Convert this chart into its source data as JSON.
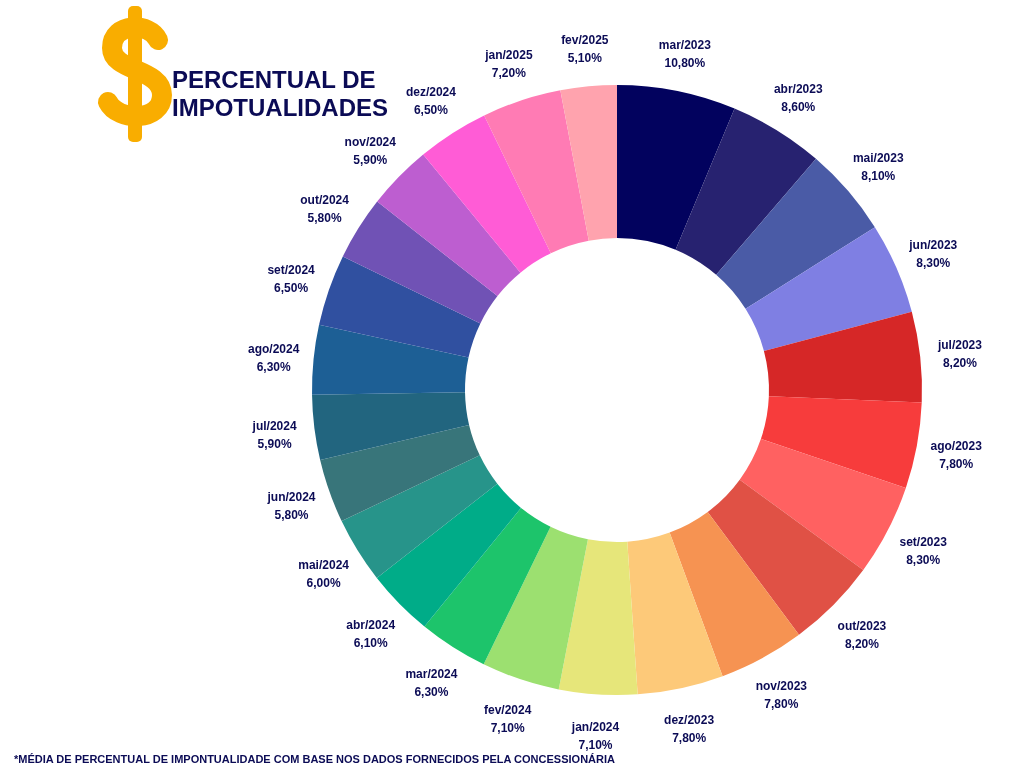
{
  "chart_data": {
    "type": "donut",
    "title": "PERCENTUAL DE IMPOTUALIDADES",
    "categories": [
      "mar/2023",
      "abr/2023",
      "mai/2023",
      "jun/2023",
      "jul/2023",
      "ago/2023",
      "set/2023",
      "out/2023",
      "nov/2023",
      "dez/2023",
      "jan/2024",
      "fev/2024",
      "mar/2024",
      "abr/2024",
      "mai/2024",
      "jun/2024",
      "jul/2024",
      "ago/2024",
      "set/2024",
      "out/2024",
      "nov/2024",
      "dez/2024",
      "jan/2025",
      "fev/2025"
    ],
    "values": [
      10.8,
      8.6,
      8.1,
      8.3,
      8.2,
      7.8,
      8.3,
      8.2,
      7.8,
      7.8,
      7.1,
      7.1,
      6.3,
      6.1,
      6.0,
      5.8,
      5.9,
      6.3,
      6.5,
      5.8,
      5.9,
      6.5,
      7.2,
      5.1
    ],
    "value_labels": [
      "10,80%",
      "8,60%",
      "8,10%",
      "8,30%",
      "8,20%",
      "7,80%",
      "8,30%",
      "8,20%",
      "7,80%",
      "7,80%",
      "7,10%",
      "7,10%",
      "6,30%",
      "6,10%",
      "6,00%",
      "5,80%",
      "5,90%",
      "6,30%",
      "6,50%",
      "5,80%",
      "5,90%",
      "6,50%",
      "7,20%",
      "5,10%"
    ],
    "colors": [
      "#02025e",
      "#272270",
      "#4a5ba6",
      "#7f7fe3",
      "#d62727",
      "#f73c3c",
      "#ff6161",
      "#e05145",
      "#f69352",
      "#fdc979",
      "#e6e67a",
      "#9ce070",
      "#1dc46b",
      "#00ac88",
      "#27948a",
      "#38757a",
      "#22657f",
      "#1d5f95",
      "#3050a0",
      "#7052b5",
      "#bd5ed0",
      "#ff5cd6",
      "#ff7bb4",
      "#ffa3ae"
    ],
    "annotations": [
      "*MÉDIA DE PERCENTUAL DE IMPONTUALIDADE COM BASE NOS DADOS FORNECIDOS PELA CONCESSIONÁRIA"
    ]
  }
}
